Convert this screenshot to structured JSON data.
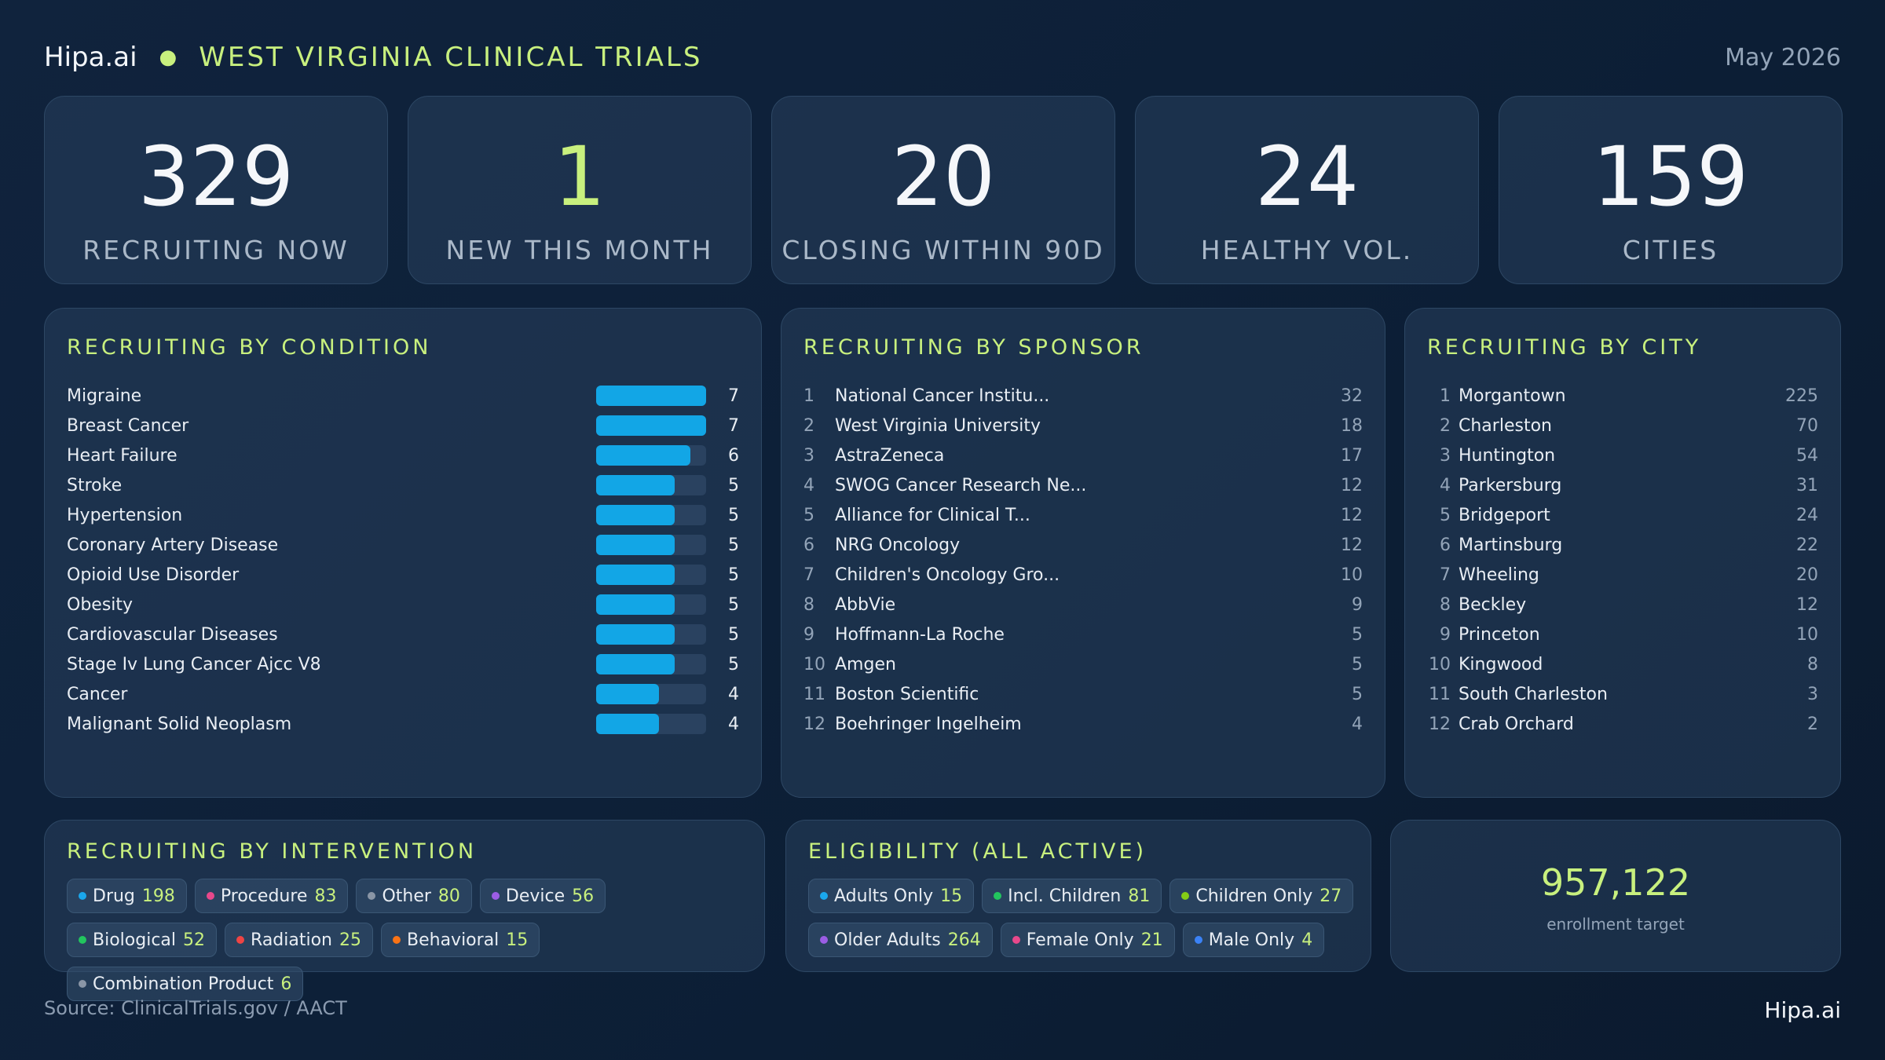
{
  "header": {
    "brand": "Hipa.ai",
    "title": "WEST VIRGINIA CLINICAL TRIALS",
    "date": "May 2026"
  },
  "kpis": [
    {
      "value": "329",
      "label": "RECRUITING NOW",
      "accent": false
    },
    {
      "value": "1",
      "label": "NEW THIS MONTH",
      "accent": true
    },
    {
      "value": "20",
      "label": "CLOSING WITHIN 90D",
      "accent": false
    },
    {
      "value": "24",
      "label": "HEALTHY VOL.",
      "accent": false
    },
    {
      "value": "159",
      "label": "CITIES",
      "accent": false
    }
  ],
  "condition": {
    "title": "RECRUITING BY CONDITION",
    "bar_max": 7,
    "items": [
      {
        "name": "Migraine",
        "value": 7
      },
      {
        "name": "Breast Cancer",
        "value": 7
      },
      {
        "name": "Heart Failure",
        "value": 6
      },
      {
        "name": "Stroke",
        "value": 5
      },
      {
        "name": "Hypertension",
        "value": 5
      },
      {
        "name": "Coronary Artery Disease",
        "value": 5
      },
      {
        "name": "Opioid Use Disorder",
        "value": 5
      },
      {
        "name": "Obesity",
        "value": 5
      },
      {
        "name": "Cardiovascular Diseases",
        "value": 5
      },
      {
        "name": "Stage Iv Lung Cancer Ajcc V8",
        "value": 5
      },
      {
        "name": "Cancer",
        "value": 4
      },
      {
        "name": "Malignant Solid Neoplasm",
        "value": 4
      }
    ]
  },
  "sponsor": {
    "title": "RECRUITING BY SPONSOR",
    "items": [
      {
        "rank": "1",
        "name": "National Cancer Institu...",
        "value": "32"
      },
      {
        "rank": "2",
        "name": "West Virginia University",
        "value": "18"
      },
      {
        "rank": "3",
        "name": "AstraZeneca",
        "value": "17"
      },
      {
        "rank": "4",
        "name": "SWOG Cancer Research Ne...",
        "value": "12"
      },
      {
        "rank": "5",
        "name": "Alliance for Clinical T...",
        "value": "12"
      },
      {
        "rank": "6",
        "name": "NRG Oncology",
        "value": "12"
      },
      {
        "rank": "7",
        "name": "Children's Oncology Gro...",
        "value": "10"
      },
      {
        "rank": "8",
        "name": "AbbVie",
        "value": "9"
      },
      {
        "rank": "9",
        "name": "Hoffmann-La Roche",
        "value": "5"
      },
      {
        "rank": "10",
        "name": "Amgen",
        "value": "5"
      },
      {
        "rank": "11",
        "name": "Boston Scientific",
        "value": "5"
      },
      {
        "rank": "12",
        "name": "Boehringer Ingelheim",
        "value": "4"
      }
    ]
  },
  "city": {
    "title": "RECRUITING BY CITY",
    "items": [
      {
        "rank": "1",
        "name": "Morgantown",
        "value": "225"
      },
      {
        "rank": "2",
        "name": "Charleston",
        "value": "70"
      },
      {
        "rank": "3",
        "name": "Huntington",
        "value": "54"
      },
      {
        "rank": "4",
        "name": "Parkersburg",
        "value": "31"
      },
      {
        "rank": "5",
        "name": "Bridgeport",
        "value": "24"
      },
      {
        "rank": "6",
        "name": "Martinsburg",
        "value": "22"
      },
      {
        "rank": "7",
        "name": "Wheeling",
        "value": "20"
      },
      {
        "rank": "8",
        "name": "Beckley",
        "value": "12"
      },
      {
        "rank": "9",
        "name": "Princeton",
        "value": "10"
      },
      {
        "rank": "10",
        "name": "Kingwood",
        "value": "8"
      },
      {
        "rank": "11",
        "name": "South Charleston",
        "value": "3"
      },
      {
        "rank": "12",
        "name": "Crab Orchard",
        "value": "2"
      }
    ]
  },
  "intervention": {
    "title": "RECRUITING BY INTERVENTION",
    "tags": [
      {
        "label": "Drug",
        "value": "198",
        "color": "#1aa7ec"
      },
      {
        "label": "Procedure",
        "value": "83",
        "color": "#e8488b"
      },
      {
        "label": "Other",
        "value": "80",
        "color": "#8a96a6"
      },
      {
        "label": "Device",
        "value": "56",
        "color": "#9b5de5"
      },
      {
        "label": "Biological",
        "value": "52",
        "color": "#22c55e"
      },
      {
        "label": "Radiation",
        "value": "25",
        "color": "#ef4444"
      },
      {
        "label": "Behavioral",
        "value": "15",
        "color": "#f97316"
      },
      {
        "label": "Combination Product",
        "value": "6",
        "color": "#8a96a6"
      }
    ]
  },
  "eligibility": {
    "title": "ELIGIBILITY (ALL ACTIVE)",
    "tags": [
      {
        "label": "Adults Only",
        "value": "15",
        "color": "#1aa7ec"
      },
      {
        "label": "Incl. Children",
        "value": "81",
        "color": "#22c55e"
      },
      {
        "label": "Children Only",
        "value": "27",
        "color": "#84cc16"
      },
      {
        "label": "Older Adults",
        "value": "264",
        "color": "#9b5de5"
      },
      {
        "label": "Female Only",
        "value": "21",
        "color": "#e8488b"
      },
      {
        "label": "Male Only",
        "value": "4",
        "color": "#3b82f6"
      }
    ]
  },
  "enrollment": {
    "value": "957,122",
    "label": "enrollment target"
  },
  "footer": {
    "source": "Source: ClinicalTrials.gov / AACT",
    "brand": "Hipa.ai"
  }
}
